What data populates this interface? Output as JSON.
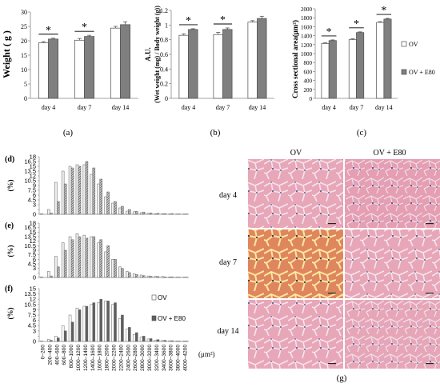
{
  "panel_labels": {
    "a": "(a)",
    "b": "(b)",
    "c": "(c)",
    "d": "(d)",
    "e": "(e)",
    "f": "(f)",
    "g": "(g)"
  },
  "colors": {
    "ov": "#ffffff",
    "ov_e80": "#7f7f7f",
    "stroke": "#4d4d4d",
    "histo_dark": "#5f5f5f",
    "histo_light": "#eeeeee"
  },
  "chart_data": [
    {
      "id": "a",
      "type": "bar",
      "ylabel": "Weight ( g )",
      "categories": [
        "day 4",
        "day 7",
        "day 14"
      ],
      "ylim": [
        0,
        30
      ],
      "yticks": [
        0,
        5,
        10,
        15,
        20,
        25,
        30
      ],
      "series": [
        {
          "values": [
            19.3,
            20.2,
            24.4
          ],
          "errors": [
            0.4,
            0.6,
            0.6
          ]
        },
        {
          "values": [
            20.6,
            21.5,
            25.6
          ],
          "errors": [
            0.3,
            0.4,
            1.0
          ]
        }
      ],
      "significance": [
        "*",
        "*",
        ""
      ]
    },
    {
      "id": "b",
      "type": "bar",
      "ylabel": "A.U.",
      "ylabel2": "(Wet weight (mg) / Body weight (g))",
      "categories": [
        "day 4",
        "day 7",
        "day 14"
      ],
      "ylim": [
        0,
        1.2
      ],
      "yticks": [
        "0",
        "0.2",
        "0.4",
        "0.6",
        "0.8",
        "1",
        "1.2"
      ],
      "series": [
        {
          "values": [
            0.86,
            0.87,
            1.04
          ],
          "errors": [
            0.02,
            0.03,
            0.02
          ]
        },
        {
          "values": [
            0.94,
            0.94,
            1.09
          ],
          "errors": [
            0.01,
            0.02,
            0.03
          ]
        }
      ],
      "significance": [
        "*",
        "*",
        ""
      ]
    },
    {
      "id": "c",
      "type": "bar",
      "ylabel": "Cross sectional area(μm²)",
      "categories": [
        "day 4",
        "day 7",
        "day 14"
      ],
      "ylim": [
        0,
        2000
      ],
      "yticks": [
        0,
        200,
        400,
        600,
        800,
        1000,
        1200,
        1400,
        1600,
        1800,
        2000
      ],
      "series": [
        {
          "name": "OV",
          "values": [
            1225,
            1310,
            1695
          ],
          "errors": [
            15,
            20,
            20
          ]
        },
        {
          "name": "OV + E80",
          "values": [
            1290,
            1470,
            1770
          ],
          "errors": [
            15,
            15,
            15
          ]
        }
      ],
      "significance": [
        "*",
        "*",
        "*"
      ]
    },
    {
      "id": "d",
      "type": "bar",
      "ylabel": "(%)",
      "ylim": [
        0,
        18
      ],
      "yticks": [
        0,
        1.5,
        3,
        4.5,
        6,
        7.5,
        9,
        10.5,
        12,
        13.5,
        15,
        16.5,
        18
      ],
      "ytick_labels": [
        "0",
        "",
        "3",
        "4.5",
        "6",
        "7.5",
        "9",
        "10.5",
        "12",
        "13.5",
        "15",
        "16.5",
        "18"
      ],
      "series": [
        {
          "values": [
            0.2,
            1.5,
            10.0,
            13.5,
            15.0,
            15.5,
            15.5,
            12.5,
            9.5,
            5.5,
            3.5,
            2.0,
            1.0,
            0.8,
            0.5,
            0.3,
            0.2,
            0.2,
            0.1,
            0.1,
            0.1
          ]
        },
        {
          "values": [
            0.0,
            0.4,
            4.0,
            9.5,
            14.5,
            15.0,
            16.5,
            14.5,
            11.0,
            7.0,
            4.0,
            2.5,
            1.5,
            0.9,
            0.7,
            0.4,
            0.3,
            0.2,
            0.2,
            0.1,
            0.1
          ]
        }
      ]
    },
    {
      "id": "e",
      "type": "bar",
      "ylabel": "(%)",
      "ylim": [
        0,
        18
      ],
      "yticks": [
        0,
        1.5,
        3,
        4.5,
        6,
        7.5,
        9,
        10.5,
        12,
        13.5,
        15,
        16.5,
        18
      ],
      "ytick_labels": [
        "0",
        "",
        "3",
        "4.5",
        "6",
        "7.5",
        "9",
        "10.5",
        "12",
        "13.5",
        "15",
        "16.5",
        "18"
      ],
      "series": [
        {
          "values": [
            0.2,
            2.0,
            7.0,
            11.5,
            13.5,
            14.5,
            14.0,
            13.5,
            11.5,
            8.5,
            6.0,
            3.5,
            2.0,
            1.2,
            0.8,
            0.5,
            0.4,
            0.3,
            0.2,
            0.1,
            0.1
          ]
        },
        {
          "values": [
            0.0,
            0.5,
            3.5,
            9.0,
            12.5,
            13.5,
            13.0,
            13.5,
            12.5,
            10.5,
            6.0,
            3.0,
            1.6,
            1.0,
            0.6,
            0.4,
            0.3,
            0.2,
            0.2,
            0.1,
            0.1
          ]
        }
      ]
    },
    {
      "id": "f",
      "type": "bar",
      "ylabel": "(%)",
      "xlabel": "(μm²)",
      "ylim": [
        0,
        15
      ],
      "yticks": [
        0,
        1.5,
        3,
        4.5,
        6,
        7.5,
        9,
        10.5,
        12,
        13.5,
        15
      ],
      "ytick_labels": [
        "0",
        "",
        "3",
        "4.5",
        "6",
        "7.5",
        "9",
        "10.5",
        "12",
        "13.5",
        "15"
      ],
      "categories": [
        "0–200",
        "200–400",
        "400–600",
        "600–800",
        "800–1000",
        "1000–1200",
        "1200–1400",
        "1400–1600",
        "1600–1800",
        "1800–2000",
        "2000–2200",
        "2200–2400",
        "2400–2600",
        "2600–2800",
        "2800–3000",
        "3000–3200",
        "3200–3400",
        "3400–3600",
        "3600–3800",
        "3800–4000",
        "4000–4200"
      ],
      "series": [
        {
          "name": "OV",
          "values": [
            0.1,
            0.6,
            1.5,
            4.5,
            7.5,
            9.5,
            10.0,
            10.5,
            11.0,
            11.5,
            10.5,
            6.5,
            3.5,
            2.0,
            1.2,
            0.7,
            0.4,
            0.3,
            0.2,
            0.1,
            0.1
          ]
        },
        {
          "name": "OV + E80",
          "values": [
            0.0,
            0.3,
            1.0,
            3.0,
            5.5,
            9.0,
            10.0,
            11.0,
            12.0,
            11.5,
            11.0,
            7.5,
            4.0,
            2.5,
            1.5,
            0.8,
            0.5,
            0.3,
            0.2,
            0.1,
            0.1
          ]
        }
      ]
    }
  ],
  "histology": {
    "col_headers": [
      "OV",
      "OV + E80"
    ],
    "row_labels": [
      "day 4",
      "day 7",
      "day 14"
    ]
  }
}
